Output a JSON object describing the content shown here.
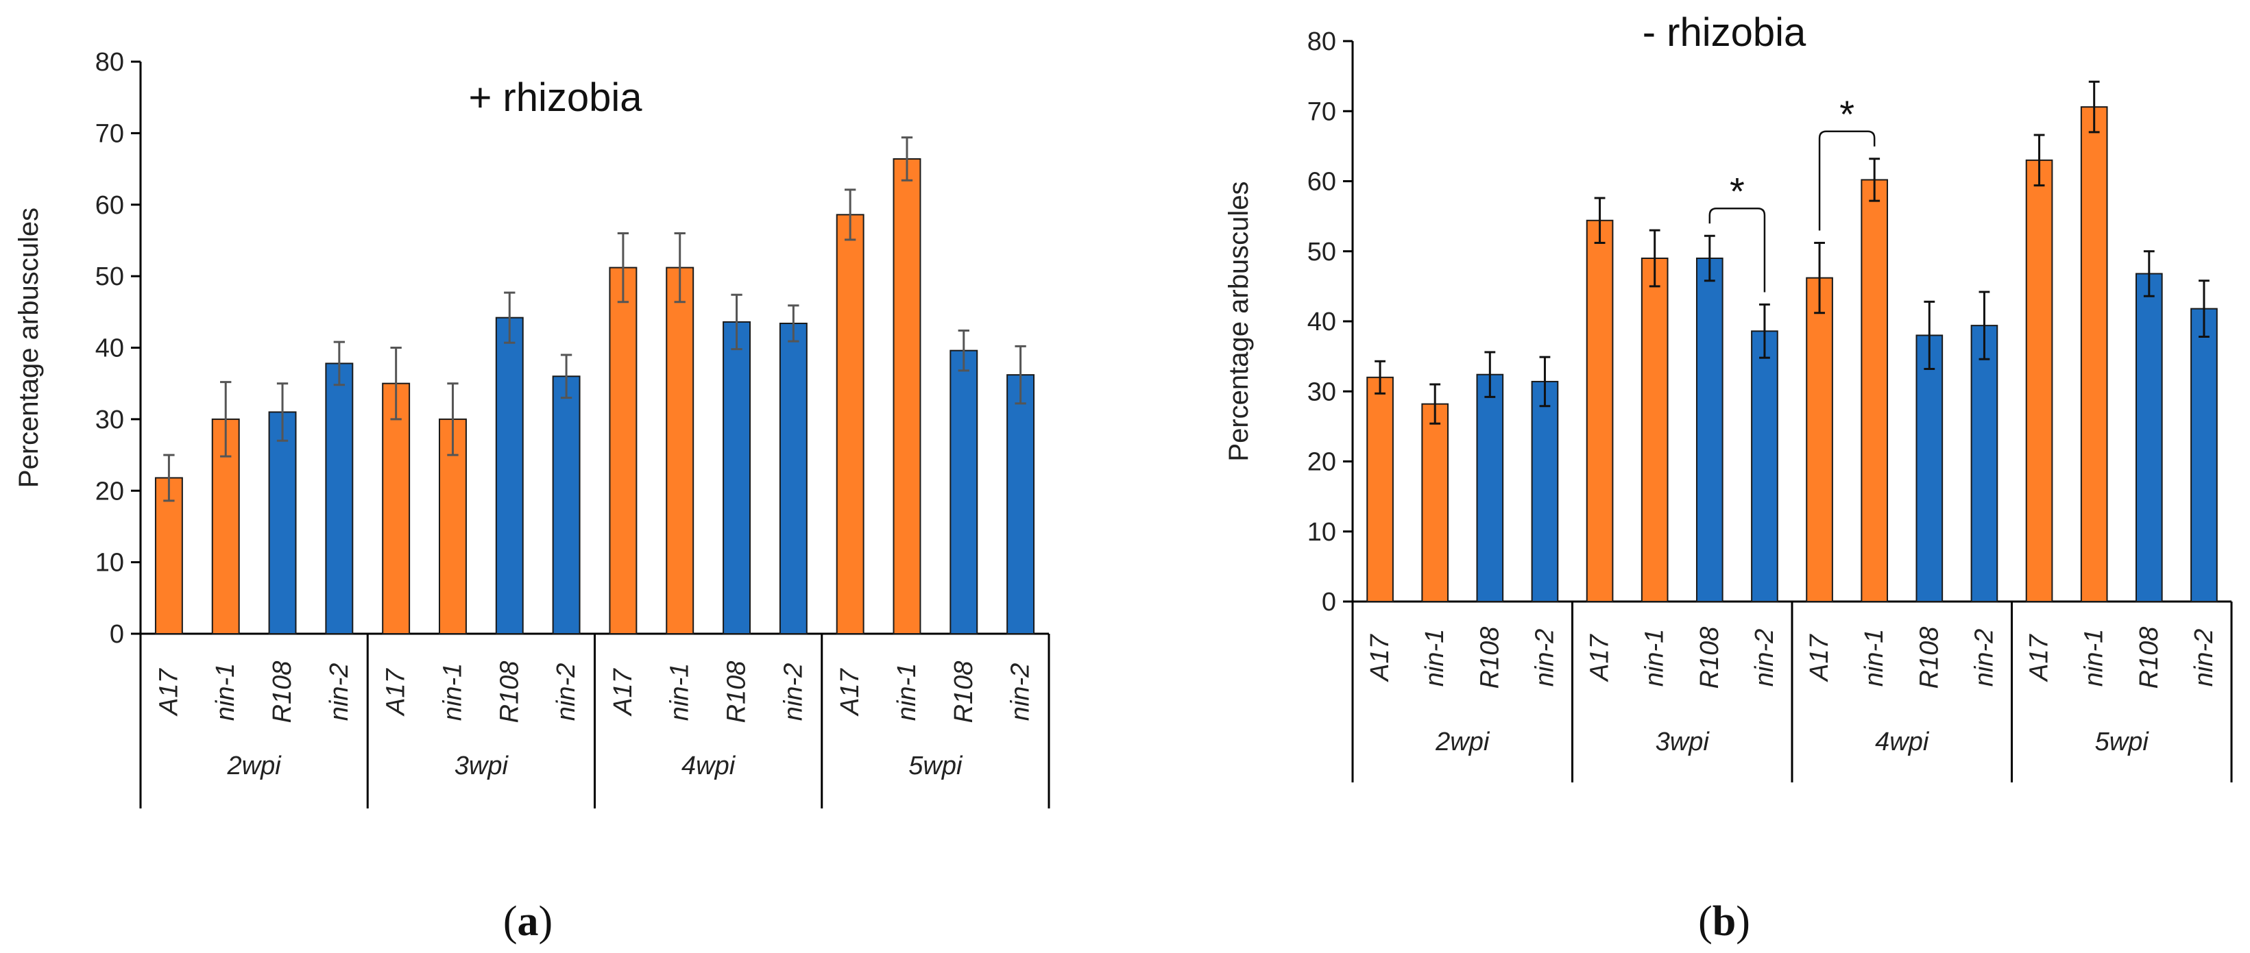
{
  "colors": {
    "orange": "#FF7F27",
    "blue": "#1F6FC1",
    "axis": "#000000"
  },
  "panel_labels": [
    {
      "open": "(",
      "letter": "a",
      "close": ")"
    },
    {
      "open": "(",
      "letter": "b",
      "close": ")"
    }
  ],
  "chart_data": [
    {
      "type": "bar",
      "title": "+ rhizobia",
      "ylabel": "Percentage arbuscules",
      "ylim": [
        0,
        80
      ],
      "yticks": [
        0,
        10,
        20,
        30,
        40,
        50,
        60,
        70,
        80
      ],
      "grid": false,
      "groups": [
        {
          "label": "2wpi",
          "categories": [
            "A17",
            "nin-1",
            "R108",
            "nin-2"
          ],
          "values": [
            21.8,
            30.0,
            31.0,
            37.8
          ],
          "errors": [
            3.2,
            5.2,
            4.0,
            3.0
          ],
          "colors": [
            "orange",
            "orange",
            "blue",
            "blue"
          ]
        },
        {
          "label": "3wpi",
          "categories": [
            "A17",
            "nin-1",
            "R108",
            "nin-2"
          ],
          "values": [
            35.0,
            30.0,
            44.2,
            36.0
          ],
          "errors": [
            5.0,
            5.0,
            3.5,
            3.0
          ],
          "colors": [
            "orange",
            "orange",
            "blue",
            "blue"
          ]
        },
        {
          "label": "4wpi",
          "categories": [
            "A17",
            "nin-1",
            "R108",
            "nin-2"
          ],
          "values": [
            51.2,
            51.2,
            43.6,
            43.4
          ],
          "errors": [
            4.8,
            4.8,
            3.8,
            2.5
          ],
          "colors": [
            "orange",
            "orange",
            "blue",
            "blue"
          ]
        },
        {
          "label": "5wpi",
          "categories": [
            "A17",
            "nin-1",
            "R108",
            "nin-2"
          ],
          "values": [
            58.6,
            66.4,
            39.6,
            36.2
          ],
          "errors": [
            3.5,
            3.0,
            2.8,
            4.0
          ],
          "colors": [
            "orange",
            "orange",
            "blue",
            "blue"
          ]
        }
      ],
      "significance": []
    },
    {
      "type": "bar",
      "title": "- rhizobia",
      "ylabel": "Percentage arbuscules",
      "ylim": [
        0,
        80
      ],
      "yticks": [
        0,
        10,
        20,
        30,
        40,
        50,
        60,
        70,
        80
      ],
      "grid": false,
      "groups": [
        {
          "label": "2wpi",
          "categories": [
            "A17",
            "nin-1",
            "R108",
            "nin-2"
          ],
          "values": [
            32.0,
            28.2,
            32.4,
            31.4
          ],
          "errors": [
            2.3,
            2.8,
            3.2,
            3.5
          ],
          "colors": [
            "orange",
            "orange",
            "blue",
            "blue"
          ]
        },
        {
          "label": "3wpi",
          "categories": [
            "A17",
            "nin-1",
            "R108",
            "nin-2"
          ],
          "values": [
            54.4,
            49.0,
            49.0,
            38.6
          ],
          "errors": [
            3.2,
            4.0,
            3.2,
            3.8
          ],
          "colors": [
            "orange",
            "orange",
            "blue",
            "blue"
          ]
        },
        {
          "label": "4wpi",
          "categories": [
            "A17",
            "nin-1",
            "R108",
            "nin-2"
          ],
          "values": [
            46.2,
            60.2,
            38.0,
            39.4
          ],
          "errors": [
            5.0,
            3.0,
            4.8,
            4.8
          ],
          "colors": [
            "orange",
            "orange",
            "blue",
            "blue"
          ]
        },
        {
          "label": "5wpi",
          "categories": [
            "A17",
            "nin-1",
            "R108",
            "nin-2"
          ],
          "values": [
            63.0,
            70.6,
            46.8,
            41.8
          ],
          "errors": [
            3.6,
            3.6,
            3.2,
            4.0
          ],
          "colors": [
            "orange",
            "orange",
            "blue",
            "blue"
          ]
        }
      ],
      "significance": [
        {
          "group": 1,
          "from": 2,
          "to": 3,
          "label": "*"
        },
        {
          "group": 2,
          "from": 0,
          "to": 1,
          "label": "*"
        }
      ]
    }
  ]
}
